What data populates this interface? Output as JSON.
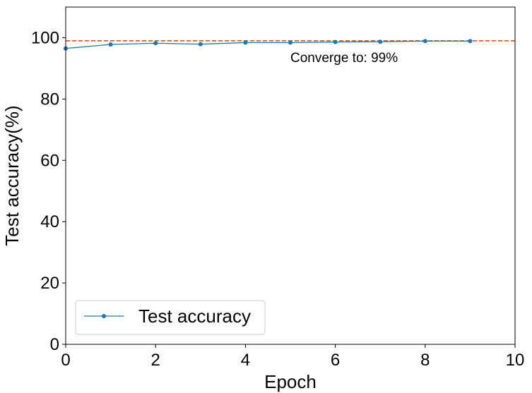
{
  "chart_data": {
    "type": "line",
    "xlabel": "Epoch",
    "ylabel": "Test accuracy(%)",
    "xlim": [
      0,
      10
    ],
    "ylim": [
      0,
      110
    ],
    "xticks": [
      0,
      2,
      4,
      6,
      8,
      10
    ],
    "yticks": [
      0,
      20,
      40,
      60,
      80,
      100
    ],
    "grid": false,
    "legend_position": "lower-left",
    "series": [
      {
        "name": "Test accuracy",
        "color": "#1f77b4",
        "marker": "circle",
        "x": [
          0,
          1,
          2,
          3,
          4,
          5,
          6,
          7,
          8,
          9
        ],
        "y": [
          96.5,
          97.8,
          98.2,
          97.9,
          98.4,
          98.4,
          98.6,
          98.7,
          98.9,
          98.9
        ]
      }
    ],
    "reference_line": {
      "y": 99,
      "color": "#d9541e",
      "style": "dashed"
    },
    "annotation": {
      "text": "Converge to: 99%",
      "x": 5,
      "y": 92
    }
  }
}
